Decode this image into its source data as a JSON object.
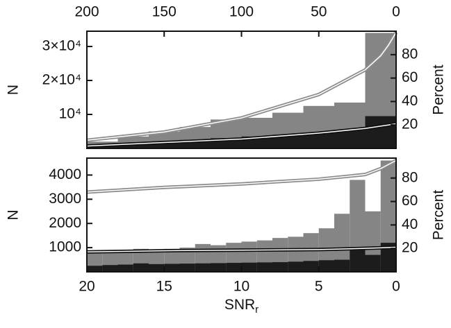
{
  "chart_data": [
    {
      "type": "histogram",
      "xaxis_position": "top",
      "ylabel": "N",
      "y2label": "Percent",
      "bins": [
        200,
        180,
        160,
        140,
        120,
        100,
        80,
        60,
        40,
        20,
        0
      ],
      "series": [
        {
          "color": "#858585",
          "values": [
            2000,
            3500,
            5000,
            6300,
            8500,
            9000,
            10500,
            12500,
            13500,
            34000
          ]
        },
        {
          "color": "#1c1c1c",
          "values": [
            700,
            1200,
            1800,
            2500,
            3000,
            3500,
            4000,
            4500,
            5500,
            9500
          ]
        }
      ],
      "lines": [
        {
          "color": "#8c8c8c",
          "inner_color": "#ffffff",
          "axis": "y2",
          "x": [
            200,
            150,
            100,
            50,
            20,
            10,
            5,
            0
          ],
          "values": [
            7,
            14,
            26,
            46,
            67,
            79,
            88,
            99
          ]
        },
        {
          "color": "#111111",
          "inner_color": "#ffffff",
          "axis": "y2",
          "x": [
            200,
            150,
            100,
            50,
            20,
            10,
            5,
            0
          ],
          "values": [
            2,
            5,
            8,
            13,
            17,
            19,
            20,
            21
          ]
        }
      ],
      "xlim": [
        200,
        0
      ],
      "xticks": [
        200,
        150,
        100,
        50,
        0
      ],
      "ylim": [
        0,
        34500
      ],
      "yticks": [
        {
          "value": 10000,
          "label": "10⁴"
        },
        {
          "value": 20000,
          "label": "2×10⁴"
        },
        {
          "value": 30000,
          "label": "3×10⁴"
        }
      ],
      "y2lim": [
        0,
        100
      ],
      "y2ticks": [
        20,
        40,
        60,
        80
      ]
    },
    {
      "type": "histogram",
      "xaxis_position": "bottom",
      "ylabel": "N",
      "y2label": "Percent",
      "xlabel": {
        "text": "SNR",
        "subscript": "r"
      },
      "bins": [
        20,
        19,
        18,
        17,
        16,
        15,
        14,
        13,
        12,
        11,
        10,
        9,
        8,
        7,
        6,
        5,
        4,
        3,
        2,
        1,
        0
      ],
      "series": [
        {
          "color": "#858585",
          "values": [
            780,
            850,
            900,
            950,
            900,
            950,
            1000,
            1150,
            1100,
            1200,
            1250,
            1300,
            1400,
            1450,
            1600,
            1800,
            2400,
            3800,
            2500,
            4600
          ]
        },
        {
          "color": "#1c1c1c",
          "values": [
            250,
            280,
            300,
            350,
            320,
            330,
            340,
            350,
            360,
            370,
            380,
            390,
            400,
            420,
            450,
            480,
            500,
            900,
            700,
            1200
          ]
        }
      ],
      "lines": [
        {
          "color": "#8c8c8c",
          "inner_color": "#ffffff",
          "axis": "y2",
          "x": [
            20,
            15,
            10,
            5,
            2,
            1,
            0
          ],
          "values": [
            68,
            72,
            75,
            79,
            83,
            88,
            95
          ]
        },
        {
          "color": "#111111",
          "inner_color": "#ffffff",
          "axis": "y2",
          "x": [
            20,
            15,
            10,
            5,
            2,
            1,
            0
          ],
          "values": [
            17,
            18,
            18.5,
            19,
            20,
            20.5,
            21
          ]
        }
      ],
      "xlim": [
        20,
        0
      ],
      "xticks": [
        20,
        15,
        10,
        5,
        0
      ],
      "ylim": [
        0,
        4700
      ],
      "yticks": [
        1000,
        2000,
        3000,
        4000
      ],
      "y2lim": [
        0,
        97
      ],
      "y2ticks": [
        20,
        40,
        60,
        80
      ]
    }
  ]
}
